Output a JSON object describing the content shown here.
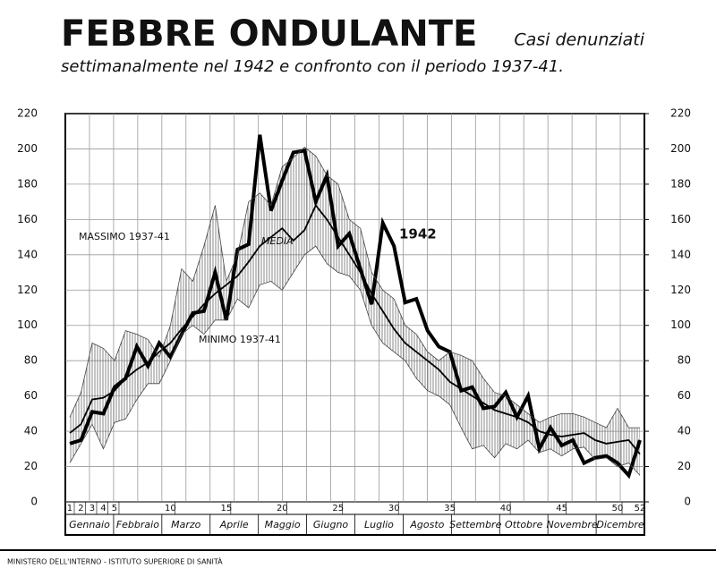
{
  "chart_data": {
    "type": "line",
    "title": "FEBBRE ONDULANTE",
    "subtitle": [
      "Casi denunziati",
      "settimanalmente nel 1942 e confronto con il periodo 1937-41."
    ],
    "footer": "MINISTERO DELL'INTERNO - ISTITUTO SUPERIORE DI SANITÀ",
    "x": [
      1,
      2,
      3,
      4,
      5,
      6,
      7,
      8,
      9,
      10,
      11,
      12,
      13,
      14,
      15,
      16,
      17,
      18,
      19,
      20,
      21,
      22,
      23,
      24,
      25,
      26,
      27,
      28,
      29,
      30,
      31,
      32,
      33,
      34,
      35,
      36,
      37,
      38,
      39,
      40,
      41,
      42,
      43,
      44,
      45,
      46,
      47,
      48,
      49,
      50,
      51,
      52
    ],
    "xlim": [
      0.6,
      52.4
    ],
    "xticks": [
      1,
      2,
      3,
      4,
      5,
      10,
      15,
      20,
      25,
      30,
      35,
      40,
      45,
      50,
      52
    ],
    "months": [
      "Gennaio",
      "Febbraio",
      "Marzo",
      "Aprile",
      "Maggio",
      "Giugno",
      "Luglio",
      "Agosto",
      "Settembre",
      "Ottobre",
      "Novembre",
      "Dicembre"
    ],
    "ylim": [
      0,
      220
    ],
    "yticks": [
      0,
      20,
      40,
      60,
      80,
      100,
      120,
      140,
      160,
      180,
      200,
      220
    ],
    "y2lim": [
      0,
      220
    ],
    "y2ticks": [
      0,
      20,
      40,
      60,
      80,
      100,
      120,
      140,
      160,
      180,
      200,
      220
    ],
    "grid": true,
    "series": [
      {
        "name": "1942",
        "color": "#000000",
        "values": [
          33,
          35,
          51,
          50,
          65,
          70,
          88,
          77,
          90,
          82,
          95,
          107,
          108,
          130,
          103,
          143,
          146,
          208,
          165,
          182,
          198,
          199,
          170,
          185,
          145,
          152,
          132,
          112,
          158,
          145,
          113,
          115,
          97,
          88,
          85,
          63,
          65,
          53,
          54,
          62,
          48,
          60,
          30,
          42,
          32,
          35,
          22,
          25,
          26,
          22,
          15,
          35
        ]
      },
      {
        "name": "MEDIA",
        "color": "#000000",
        "values": [
          39,
          44,
          58,
          59,
          63,
          70,
          75,
          79,
          85,
          90,
          98,
          105,
          112,
          118,
          123,
          128,
          136,
          145,
          150,
          155,
          148,
          154,
          168,
          160,
          150,
          140,
          130,
          118,
          108,
          98,
          90,
          85,
          80,
          75,
          68,
          64,
          60,
          56,
          52,
          50,
          48,
          45,
          40,
          38,
          37,
          38,
          39,
          35,
          33,
          34,
          35,
          27
        ]
      },
      {
        "name": "MASSIMO 1937-41",
        "color": "#444444",
        "values": [
          48,
          62,
          90,
          87,
          80,
          97,
          95,
          92,
          82,
          100,
          132,
          125,
          145,
          168,
          125,
          140,
          170,
          175,
          168,
          190,
          195,
          201,
          196,
          185,
          180,
          160,
          155,
          130,
          120,
          115,
          100,
          95,
          85,
          80,
          85,
          83,
          80,
          70,
          62,
          60,
          55,
          50,
          45,
          48,
          50,
          50,
          48,
          45,
          42,
          53,
          42,
          42
        ]
      },
      {
        "name": "MINIMO 1937-41",
        "color": "#444444",
        "values": [
          22,
          33,
          44,
          30,
          45,
          47,
          58,
          67,
          67,
          80,
          95,
          100,
          95,
          103,
          103,
          115,
          110,
          123,
          125,
          120,
          130,
          140,
          145,
          135,
          130,
          128,
          120,
          100,
          90,
          85,
          80,
          70,
          63,
          60,
          55,
          42,
          30,
          32,
          25,
          33,
          30,
          35,
          28,
          30,
          26,
          30,
          31,
          24,
          25,
          20,
          22,
          15
        ]
      }
    ]
  }
}
